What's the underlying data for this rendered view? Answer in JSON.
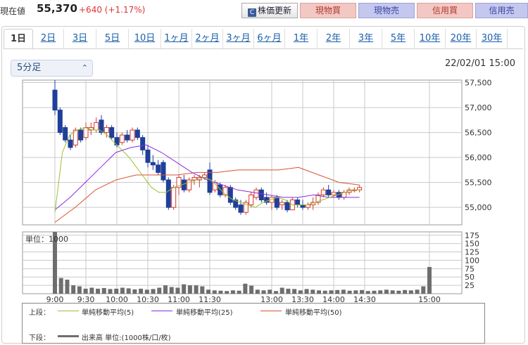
{
  "header": {
    "label": "現在値",
    "price": "55,370",
    "change": "+640 (+1.17%)",
    "update_button": "株価更新",
    "spot_buy": "現物買",
    "spot_sell": "現物売",
    "margin_buy": "信用買",
    "margin_sell": "信用売"
  },
  "tabs": [
    "1日",
    "2日",
    "3日",
    "5日",
    "10日",
    "1ヶ月",
    "2ヶ月",
    "3ヶ月",
    "6ヶ月",
    "1年",
    "2年",
    "3年",
    "5年",
    "10年",
    "20年",
    "30年"
  ],
  "active_tab": "1日",
  "interval": {
    "value": "5分足"
  },
  "timestamp": "22/02/01 15:00",
  "colors": {
    "up": "#d43c2c",
    "down": "#1f3f99",
    "ma5": "#9ac133",
    "ma25": "#8a2be2",
    "ma50": "#d9532c",
    "volume": "#6e6e6e"
  },
  "legend": {
    "upper_label": "上段：",
    "ma5": "単純移動平均(5)",
    "ma25": "単純移動平均(25)",
    "ma50": "単純移動平均(50)",
    "lower_label": "下段：",
    "volume": "出来高 単位:(1000株/口/枚)"
  },
  "chart_data": [
    {
      "type": "candlestick",
      "title": "",
      "x_ticks": [
        "9:00",
        "9:30",
        "10:00",
        "10:30",
        "11:00",
        "11:30",
        "13:00",
        "13:30",
        "14:00",
        "14:30",
        "15:00"
      ],
      "y_ticks": [
        "57,500",
        "57,000",
        "56,500",
        "56,000",
        "55,500",
        "55,000"
      ],
      "ylim": [
        54650,
        57550
      ],
      "grid": true,
      "candles": [
        {
          "t": "9:00",
          "o": 57350,
          "h": 57550,
          "l": 56850,
          "c": 56950
        },
        {
          "t": "9:05",
          "o": 56950,
          "h": 57000,
          "l": 56450,
          "c": 56500
        },
        {
          "t": "9:10",
          "o": 56600,
          "h": 56650,
          "l": 56300,
          "c": 56350
        },
        {
          "t": "9:15",
          "o": 56350,
          "h": 56450,
          "l": 56150,
          "c": 56200
        },
        {
          "t": "9:20",
          "o": 56250,
          "h": 56600,
          "l": 56200,
          "c": 56550
        },
        {
          "t": "9:25",
          "o": 56550,
          "h": 56600,
          "l": 56300,
          "c": 56350
        },
        {
          "t": "9:30",
          "o": 56400,
          "h": 56700,
          "l": 56350,
          "c": 56600
        },
        {
          "t": "9:35",
          "o": 56550,
          "h": 56700,
          "l": 56450,
          "c": 56600
        },
        {
          "t": "9:40",
          "o": 56550,
          "h": 56800,
          "l": 56500,
          "c": 56700
        },
        {
          "t": "9:45",
          "o": 56750,
          "h": 56850,
          "l": 56450,
          "c": 56500
        },
        {
          "t": "9:50",
          "o": 56500,
          "h": 56650,
          "l": 56400,
          "c": 56600
        },
        {
          "t": "9:55",
          "o": 56600,
          "h": 56650,
          "l": 56350,
          "c": 56400
        },
        {
          "t": "10:00",
          "o": 56400,
          "h": 56500,
          "l": 56200,
          "c": 56250
        },
        {
          "t": "10:05",
          "o": 56300,
          "h": 56500,
          "l": 56250,
          "c": 56450
        },
        {
          "t": "10:10",
          "o": 56450,
          "h": 56550,
          "l": 56300,
          "c": 56350
        },
        {
          "t": "10:15",
          "o": 56350,
          "h": 56600,
          "l": 56300,
          "c": 56550
        },
        {
          "t": "10:20",
          "o": 56550,
          "h": 56600,
          "l": 56350,
          "c": 56400
        },
        {
          "t": "10:25",
          "o": 56400,
          "h": 56450,
          "l": 56050,
          "c": 56150
        },
        {
          "t": "10:30",
          "o": 56150,
          "h": 56250,
          "l": 55800,
          "c": 55900
        },
        {
          "t": "10:35",
          "o": 55900,
          "h": 56050,
          "l": 55750,
          "c": 55850
        },
        {
          "t": "10:40",
          "o": 55850,
          "h": 55950,
          "l": 55650,
          "c": 55700
        },
        {
          "t": "10:45",
          "o": 55900,
          "h": 55950,
          "l": 55500,
          "c": 55550
        },
        {
          "t": "10:50",
          "o": 55550,
          "h": 55600,
          "l": 54950,
          "c": 55000
        },
        {
          "t": "10:55",
          "o": 55000,
          "h": 55450,
          "l": 54950,
          "c": 55400
        },
        {
          "t": "11:00",
          "o": 55400,
          "h": 55650,
          "l": 55250,
          "c": 55600
        },
        {
          "t": "11:05",
          "o": 55550,
          "h": 55650,
          "l": 55300,
          "c": 55350
        },
        {
          "t": "11:10",
          "o": 55350,
          "h": 55600,
          "l": 55300,
          "c": 55550
        },
        {
          "t": "11:15",
          "o": 55550,
          "h": 55650,
          "l": 55450,
          "c": 55600
        },
        {
          "t": "11:20",
          "o": 55550,
          "h": 55650,
          "l": 55400,
          "c": 55600
        },
        {
          "t": "11:25",
          "o": 55600,
          "h": 55700,
          "l": 55550,
          "c": 55650
        },
        {
          "t": "11:30",
          "o": 55750,
          "h": 55900,
          "l": 55600,
          "c": 55650
        },
        {
          "t": "12:30",
          "o": 55650,
          "h": 55700,
          "l": 55250,
          "c": 55300
        },
        {
          "t": "12:35",
          "o": 55350,
          "h": 55550,
          "l": 55300,
          "c": 55500
        },
        {
          "t": "12:40",
          "o": 55450,
          "h": 55500,
          "l": 55200,
          "c": 55250
        },
        {
          "t": "12:45",
          "o": 55250,
          "h": 55450,
          "l": 55200,
          "c": 55400
        },
        {
          "t": "12:50",
          "o": 55400,
          "h": 55450,
          "l": 55050,
          "c": 55100
        },
        {
          "t": "12:55",
          "o": 55150,
          "h": 55200,
          "l": 54950,
          "c": 55000
        },
        {
          "t": "13:00",
          "o": 55050,
          "h": 55150,
          "l": 54850,
          "c": 54900
        },
        {
          "t": "13:05",
          "o": 54900,
          "h": 55150,
          "l": 54850,
          "c": 55100
        },
        {
          "t": "13:10",
          "o": 55050,
          "h": 55300,
          "l": 55000,
          "c": 55250
        },
        {
          "t": "13:15",
          "o": 55200,
          "h": 55400,
          "l": 55150,
          "c": 55350
        },
        {
          "t": "13:20",
          "o": 55350,
          "h": 55400,
          "l": 55100,
          "c": 55150
        },
        {
          "t": "13:25",
          "o": 55200,
          "h": 55300,
          "l": 55050,
          "c": 55100
        },
        {
          "t": "13:30",
          "o": 55100,
          "h": 55250,
          "l": 54950,
          "c": 55200
        },
        {
          "t": "13:35",
          "o": 55200,
          "h": 55250,
          "l": 54950,
          "c": 55000
        },
        {
          "t": "13:40",
          "o": 55050,
          "h": 55150,
          "l": 54950,
          "c": 55100
        },
        {
          "t": "13:45",
          "o": 55100,
          "h": 55150,
          "l": 54900,
          "c": 54950
        },
        {
          "t": "13:50",
          "o": 54950,
          "h": 55200,
          "l": 54950,
          "c": 55150
        },
        {
          "t": "13:55",
          "o": 55150,
          "h": 55200,
          "l": 55000,
          "c": 55050
        },
        {
          "t": "14:00",
          "o": 55050,
          "h": 55150,
          "l": 54950,
          "c": 55000
        },
        {
          "t": "14:05",
          "o": 55000,
          "h": 55100,
          "l": 54950,
          "c": 55050
        },
        {
          "t": "14:10",
          "o": 55050,
          "h": 55200,
          "l": 54950,
          "c": 55100
        },
        {
          "t": "14:15",
          "o": 55100,
          "h": 55300,
          "l": 55050,
          "c": 55250
        },
        {
          "t": "14:20",
          "o": 55250,
          "h": 55400,
          "l": 55200,
          "c": 55350
        },
        {
          "t": "14:25",
          "o": 55350,
          "h": 55450,
          "l": 55200,
          "c": 55250
        },
        {
          "t": "14:30",
          "o": 55250,
          "h": 55350,
          "l": 55200,
          "c": 55300
        },
        {
          "t": "14:35",
          "o": 55300,
          "h": 55350,
          "l": 55150,
          "c": 55200
        },
        {
          "t": "14:40",
          "o": 55200,
          "h": 55350,
          "l": 55150,
          "c": 55300
        },
        {
          "t": "14:45",
          "o": 55300,
          "h": 55400,
          "l": 55250,
          "c": 55350
        },
        {
          "t": "14:50",
          "o": 55350,
          "h": 55400,
          "l": 55300,
          "c": 55350
        },
        {
          "t": "14:55",
          "o": 55350,
          "h": 55450,
          "l": 55300,
          "c": 55400
        }
      ],
      "ma5": [
        54900,
        56100,
        56450,
        56550,
        56600,
        56550,
        56550,
        56450,
        56300,
        56150,
        56000,
        55800,
        55600,
        55400,
        55300,
        55300,
        55400,
        55450,
        55500,
        55550,
        55600,
        55550,
        55400,
        55250,
        55150,
        55100,
        55050,
        55000,
        55100,
        55150,
        55200,
        55150,
        55050,
        55050,
        55050,
        55100,
        55150,
        55200,
        55250,
        55300,
        55350,
        55350
      ],
      "ma25": [
        54950,
        55200,
        55500,
        55800,
        56100,
        56200,
        56250,
        56100,
        55900,
        55700,
        55550,
        55450,
        55350,
        55300,
        55250,
        55200,
        55200,
        55250,
        55200,
        55200,
        55200
      ],
      "ma50": [
        54700,
        55000,
        55350,
        55550,
        55650,
        55650,
        55650,
        55700,
        55700,
        55750,
        55750,
        55750,
        55800,
        55650,
        55500,
        55450
      ]
    },
    {
      "type": "bar",
      "title": "",
      "ylabel": "単位：1000",
      "y_ticks": [
        "175",
        "150",
        "125",
        "100",
        "75",
        "50",
        "25"
      ],
      "ylim": [
        0,
        185
      ],
      "values": [
        185,
        47,
        42,
        25,
        22,
        15,
        18,
        15,
        17,
        14,
        15,
        18,
        16,
        13,
        15,
        12,
        14,
        18,
        25,
        20,
        18,
        28,
        25,
        25,
        22,
        12,
        10,
        9,
        8,
        10,
        9,
        30,
        24,
        12,
        10,
        12,
        8,
        18,
        15,
        14,
        10,
        14,
        12,
        10,
        9,
        10,
        11,
        12,
        9,
        10,
        11,
        8,
        9,
        10,
        12,
        10,
        9,
        11,
        10,
        12,
        22,
        80
      ]
    }
  ]
}
